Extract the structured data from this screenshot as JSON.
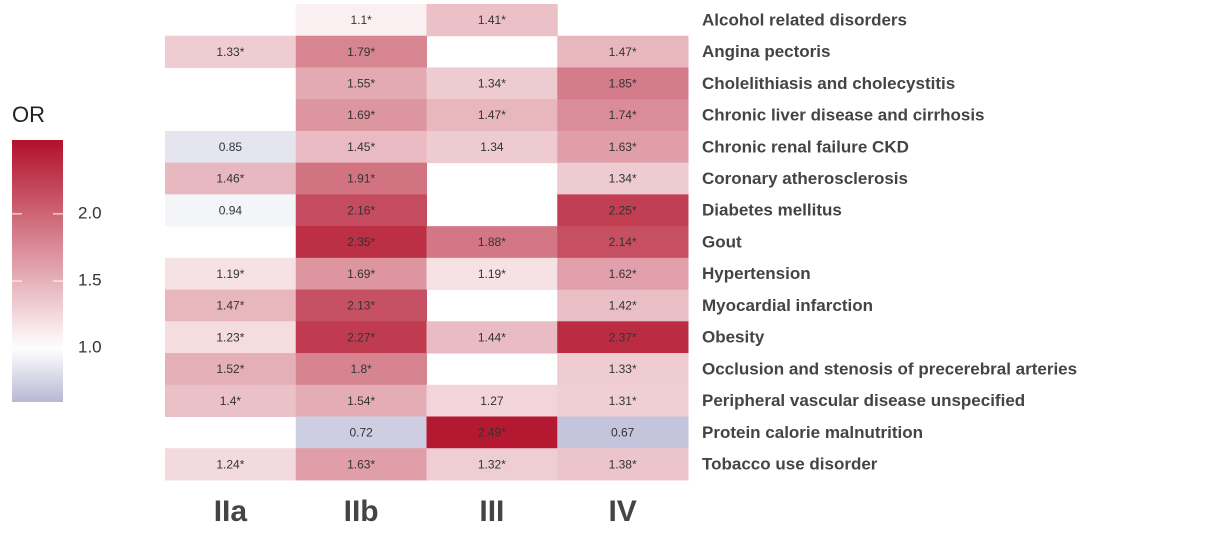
{
  "chart_data": {
    "type": "heatmap",
    "legend_title": "OR",
    "x_categories": [
      "IIa",
      "IIb",
      "III",
      "IV"
    ],
    "y_categories": [
      "Alcohol related disorders",
      "Angina pectoris",
      "Cholelithiasis and cholecystitis",
      "Chronic liver disease and cirrhosis",
      "Chronic renal failure CKD",
      "Coronary atherosclerosis",
      "Diabetes mellitus",
      "Gout",
      "Hypertension",
      "Myocardial infarction",
      "Obesity",
      "Occlusion and stenosis of precerebral arteries",
      "Peripheral vascular disease unspecified",
      "Protein calorie malnutrition",
      "Tobacco use disorder"
    ],
    "values": [
      [
        null,
        1.1,
        1.41,
        null
      ],
      [
        1.33,
        1.79,
        null,
        1.47
      ],
      [
        null,
        1.55,
        1.34,
        1.85
      ],
      [
        null,
        1.69,
        1.47,
        1.74
      ],
      [
        0.85,
        1.45,
        1.34,
        1.63
      ],
      [
        1.46,
        1.91,
        null,
        1.34
      ],
      [
        0.94,
        2.16,
        null,
        2.25
      ],
      [
        null,
        2.35,
        1.88,
        2.14
      ],
      [
        1.19,
        1.69,
        1.19,
        1.62
      ],
      [
        1.47,
        2.13,
        null,
        1.42
      ],
      [
        1.23,
        2.27,
        1.44,
        2.37
      ],
      [
        1.52,
        1.8,
        null,
        1.33
      ],
      [
        1.4,
        1.54,
        1.27,
        1.31
      ],
      [
        null,
        0.72,
        2.49,
        0.67
      ],
      [
        1.24,
        1.63,
        1.32,
        1.38
      ]
    ],
    "value_labels": [
      [
        null,
        "1.1*",
        "1.41*",
        null
      ],
      [
        "1.33*",
        "1.79*",
        null,
        "1.47*"
      ],
      [
        null,
        "1.55*",
        "1.34*",
        "1.85*"
      ],
      [
        null,
        "1.69*",
        "1.47*",
        "1.74*"
      ],
      [
        "0.85",
        "1.45*",
        "1.34",
        "1.63*"
      ],
      [
        "1.46*",
        "1.91*",
        null,
        "1.34*"
      ],
      [
        "0.94",
        "2.16*",
        null,
        "2.25*"
      ],
      [
        null,
        "2.35*",
        "1.88*",
        "2.14*"
      ],
      [
        "1.19*",
        "1.69*",
        "1.19*",
        "1.62*"
      ],
      [
        "1.47*",
        "2.13*",
        null,
        "1.42*"
      ],
      [
        "1.23*",
        "2.27*",
        "1.44*",
        "2.37*"
      ],
      [
        "1.52*",
        "1.8*",
        null,
        "1.33*"
      ],
      [
        "1.4*",
        "1.54*",
        "1.27",
        "1.31*"
      ],
      [
        null,
        "0.72",
        "2.49*",
        "0.67"
      ],
      [
        "1.24*",
        "1.63*",
        "1.32*",
        "1.38*"
      ]
    ],
    "clim": [
      0.6,
      2.55
    ],
    "cticks": [
      {
        "value": 1.0,
        "label": "1.0"
      },
      {
        "value": 1.5,
        "label": "1.5"
      },
      {
        "value": 2.0,
        "label": "2.0"
      }
    ],
    "colorscale": {
      "low": "#b7b9d4",
      "mid": "#ffffff",
      "high": "#b2102a",
      "midpoint": 1
    }
  }
}
